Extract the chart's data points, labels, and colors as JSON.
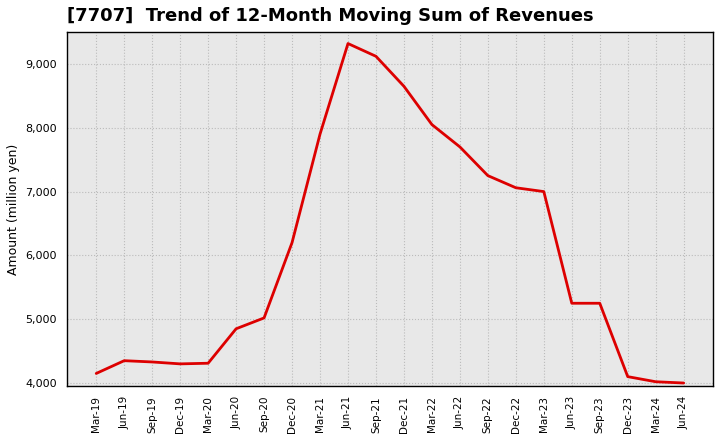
{
  "title": "[7707]  Trend of 12-Month Moving Sum of Revenues",
  "ylabel": "Amount (million yen)",
  "line_color": "#dd0000",
  "line_width": 2.0,
  "background_color": "#ffffff",
  "plot_bg_color": "#e8e8e8",
  "grid_color": "#bbbbbb",
  "ylim": [
    3950,
    9500
  ],
  "yticks": [
    4000,
    5000,
    6000,
    7000,
    8000,
    9000
  ],
  "dates": [
    "Mar-19",
    "Jun-19",
    "Sep-19",
    "Dec-19",
    "Mar-20",
    "Jun-20",
    "Sep-20",
    "Dec-20",
    "Mar-21",
    "Jun-21",
    "Sep-21",
    "Dec-21",
    "Mar-22",
    "Jun-22",
    "Sep-22",
    "Dec-22",
    "Mar-23",
    "Jun-23",
    "Sep-23",
    "Dec-23",
    "Mar-24",
    "Jun-24"
  ],
  "values": [
    4150,
    4350,
    4330,
    4300,
    4310,
    4850,
    5020,
    6200,
    7900,
    9320,
    9120,
    8650,
    8050,
    7700,
    7250,
    7060,
    7000,
    5250,
    5250,
    4100,
    4020,
    4000
  ],
  "title_fontsize": 13,
  "title_fontweight": "bold",
  "ylabel_fontsize": 9,
  "tick_fontsize": 8,
  "xtick_fontsize": 7.5
}
